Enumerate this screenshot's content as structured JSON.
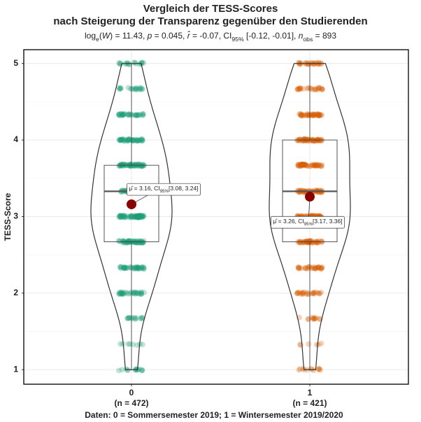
{
  "chart_data": {
    "type": "violin",
    "title": [
      "Vergleich der TESS-Scores",
      "nach Steigerung der Transparenz gegenüber den Studierenden"
    ],
    "subtitle": [
      [
        "log"
      ],
      [
        "e",
        "sub"
      ],
      [
        "("
      ],
      [
        "W",
        "it"
      ],
      [
        ") = 11.43, "
      ],
      [
        "p",
        "it"
      ],
      [
        " = 0.045, "
      ],
      [
        "r̂",
        "it"
      ],
      [
        " = -0.07, CI"
      ],
      [
        "95%",
        "sub"
      ],
      [
        " [-0.12, -0.01], "
      ],
      [
        "n",
        "it"
      ],
      [
        "obs",
        "sub"
      ],
      [
        " = 893"
      ]
    ],
    "ylabel": "TESS-Score",
    "caption": "Daten: 0 = Sommersemester 2019; 1 = Wintersemester 2019/2020",
    "categories": [
      "0",
      "1"
    ],
    "n_labels": [
      "(n = 472)",
      "(n = 421)"
    ],
    "ylim": [
      0.81,
      5.18
    ],
    "yticks": [
      1,
      2,
      3,
      4,
      5
    ],
    "grid": true,
    "levels": [
      1,
      1.33,
      1.67,
      2,
      2.33,
      2.67,
      3,
      3.33,
      3.67,
      4,
      4.33,
      4.67,
      5
    ],
    "series": [
      {
        "color": "#1b9e77",
        "counts": [
          15,
          8,
          15,
          35,
          40,
          55,
          70,
          55,
          60,
          45,
          35,
          20,
          19
        ],
        "box": {
          "whisker_low": 1,
          "q1": 2.67,
          "median": 3.33,
          "q3": 3.67,
          "whisker_high": 5
        },
        "mean": 3.16,
        "ci": [
          3.08,
          3.24
        ],
        "mean_label": [
          [
            "μ̂ = 3.16, CI"
          ],
          [
            "95%",
            "sub"
          ],
          [
            "[3.08, 3.24]"
          ]
        ]
      },
      {
        "color": "#d95f02",
        "counts": [
          12,
          6,
          12,
          25,
          30,
          45,
          55,
          45,
          50,
          50,
          40,
          25,
          26
        ],
        "box": {
          "whisker_low": 1,
          "q1": 2.67,
          "median": 3.33,
          "q3": 4.0,
          "whisker_high": 5
        },
        "mean": 3.26,
        "ci": [
          3.17,
          3.36
        ],
        "mean_label": [
          [
            "μ̂ = 3.26, CI"
          ],
          [
            "95%",
            "sub"
          ],
          [
            "[3.17, 3.36]"
          ]
        ]
      }
    ]
  }
}
